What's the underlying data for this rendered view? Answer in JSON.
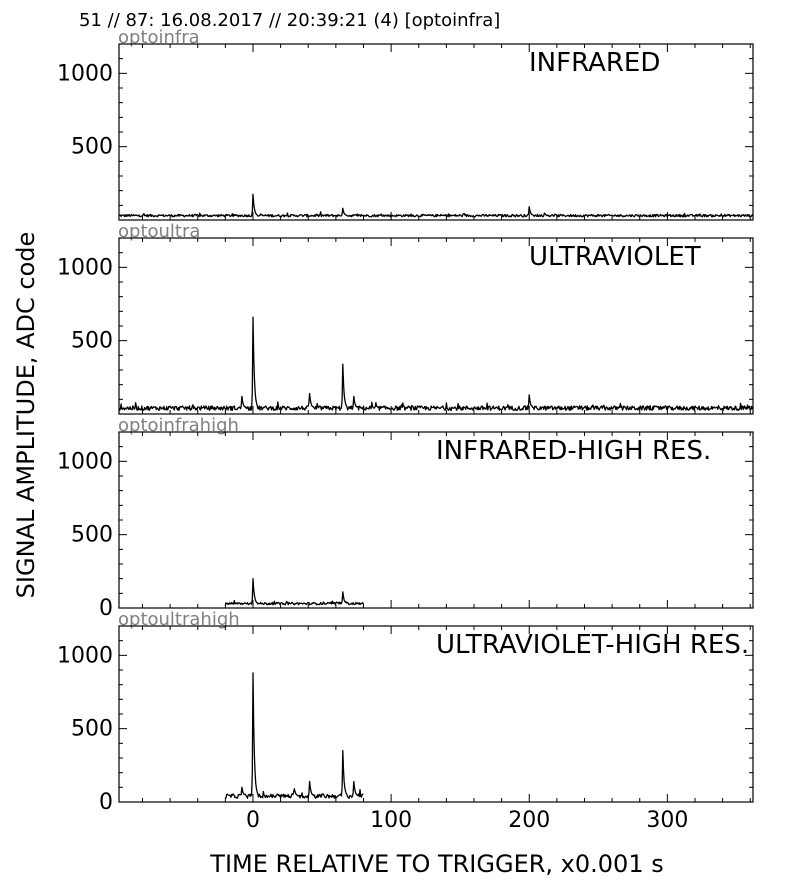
{
  "header": "51 // 87:   16.08.2017 // 20:39:21 (4)  [optoinfra]",
  "ylabel": "SIGNAL AMPLITUDE,  ADC code",
  "xlabel": "TIME RELATIVE TO TRIGGER,   x0.001 s",
  "chart_data": [
    {
      "type": "line",
      "channel": "optoinfra",
      "title": "INFRARED",
      "xlim": [
        -97,
        362
      ],
      "ylim": [
        0,
        1200
      ],
      "yticks": [
        500,
        1000
      ],
      "xticks": [
        0,
        100,
        200,
        300
      ],
      "show_x_tick_labels": false,
      "x_range": [
        -97,
        362
      ],
      "baseline": 30,
      "noise": 8,
      "peaks": [
        {
          "x": 0,
          "y": 175
        },
        {
          "x": 65,
          "y": 80
        },
        {
          "x": 200,
          "y": 90
        }
      ]
    },
    {
      "type": "line",
      "channel": "optoultra",
      "title": "ULTRAVIOLET",
      "xlim": [
        -97,
        362
      ],
      "ylim": [
        0,
        1200
      ],
      "yticks": [
        500,
        1000
      ],
      "xticks": [
        0,
        100,
        200,
        300
      ],
      "show_x_tick_labels": false,
      "x_range": [
        -97,
        362
      ],
      "baseline": 40,
      "noise": 15,
      "peaks": [
        {
          "x": 0,
          "y": 660
        },
        {
          "x": -8,
          "y": 120
        },
        {
          "x": 41,
          "y": 140
        },
        {
          "x": 65,
          "y": 340
        },
        {
          "x": 73,
          "y": 120
        },
        {
          "x": 200,
          "y": 130
        }
      ]
    },
    {
      "type": "line",
      "channel": "optoinfrahigh",
      "title": "INFRARED-HIGH RES.",
      "xlim": [
        -97,
        362
      ],
      "ylim": [
        0,
        1200
      ],
      "yticks": [
        0,
        500,
        1000
      ],
      "xticks": [
        0,
        100,
        200,
        300
      ],
      "show_x_tick_labels": false,
      "x_range": [
        -20,
        80
      ],
      "baseline": 30,
      "noise": 8,
      "peaks": [
        {
          "x": 0,
          "y": 200
        },
        {
          "x": 65,
          "y": 110
        }
      ]
    },
    {
      "type": "line",
      "channel": "optoultrahigh",
      "title": "ULTRAVIOLET-HIGH RES.",
      "xlim": [
        -97,
        362
      ],
      "ylim": [
        0,
        1200
      ],
      "yticks": [
        0,
        500,
        1000
      ],
      "xticks": [
        0,
        100,
        200,
        300
      ],
      "show_x_tick_labels": true,
      "x_range": [
        -20,
        80
      ],
      "baseline": 40,
      "noise": 15,
      "peaks": [
        {
          "x": 0,
          "y": 880
        },
        {
          "x": -8,
          "y": 100
        },
        {
          "x": 30,
          "y": 90
        },
        {
          "x": 41,
          "y": 140
        },
        {
          "x": 65,
          "y": 350
        },
        {
          "x": 73,
          "y": 140
        }
      ]
    }
  ]
}
